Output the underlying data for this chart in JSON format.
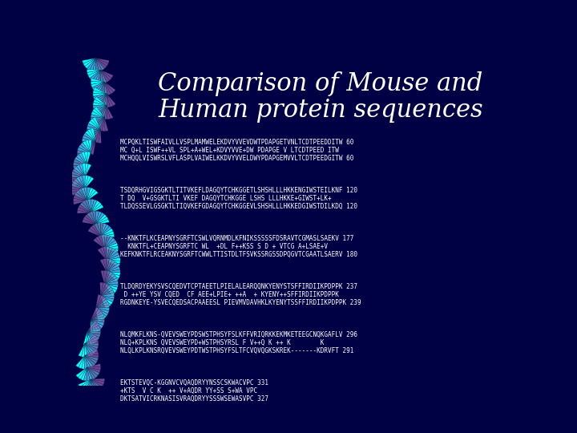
{
  "title_line1": "Comparison of Mouse and",
  "title_line2": "Human protein sequences",
  "title_color": "#FFFFFF",
  "title_fontsize": 22,
  "title_fontstyle": "italic",
  "title_fontfamily": "serif",
  "bg_color": "#000044",
  "text_color": "#FFFFFF",
  "mono_fontsize": 5.5,
  "blocks": [
    [
      "MCPQKLTISWFAIVLLVSPLMAMWELEKDVYVVEVDWTPDAPGETVNLTCDTPEEDDITW 60",
      "MC Q+L ISWF++VL SPL+A+WEL+KDVYVVE+DW PDAPGE V LTCDTPEED ITW",
      "MCHQQLVISWRSLVFLASPLVAIWELKKDVYVVELDWYPDAPGEMVVLTCDTPEEDGITW 60"
    ],
    [
      "TSDQRHGVIGSGKTLTITVKEFLDAGQYTCHKGGETLSHSHLLLHKKENGIWSTEILKNF 120",
      "T DQ  V+GSGKTLTI VKEF DAGQYTCHKGGE LSHS LLLHKKE+GIWST+LK+",
      "TLDQSSEVLGSGKTLTIQVKEFGDAGQYTCHKGGEVLSHSHLLLHKKEDGIWSTDILKDQ 120"
    ],
    [
      "--KNKTFLKCEAPNYSGRFTCSWLVQRNMDLKFNIKSSSSSFDSRAVTCGMASLSAEKV 177",
      "  KNKTFL+CEAPNYSGRFTC WL  +DL F++KSS S D + VTCG A+LSAE+V",
      "KEFKNKTFLRCEAKNYSGRFTCWWLTTISTDLTFSVKSSRGSSDPQGVTCGAATLSAERV 180"
    ],
    [
      "TLDQRDYEKYSVSCQEDVTCPTAEETLPIELALEARQQNKYENYSTSFFIRDIIKPDPPK 237",
      " D ++YE YSV CQED  CF AEE+LPIE+ ++A  + KYENY++SFFIRDIIKPDPPK",
      "RGDNKEYE-YSVECQEDSACPAAEESL PIEVMVDAVHKLKYENYTSSFFIRDIIKPDPPK 239"
    ],
    [
      "NLQMKFLKNS-QVEVSWEYPDSWSTPHSYFSLKFFVRIQRKKEKMKETEEGCNQKGAFLV 296",
      "NLQ+KPLKNS QVEVSWEYPD+WSTPHSYRSL F V++Q K ++ K        K",
      "NLQLKPLKNSRQVEVSWEYPDTWSTPHSYFSLTFCVQVQGKSKREK-------KDRVFT 291"
    ],
    [
      "EKTSTEVQC-KGGNVCVQAQDRYYNSSCSKWACVPC 331",
      "+KTS  V C K  ++ V+AQDR YY+SS S+WA VPC",
      "DKTSATVICRKNASISVRAQDRYYSSSWSEWASVPC 327"
    ]
  ],
  "spiral_cyan": "#00FFFF",
  "spiral_blue": "#6699CC",
  "spiral_purple": "#9966BB"
}
